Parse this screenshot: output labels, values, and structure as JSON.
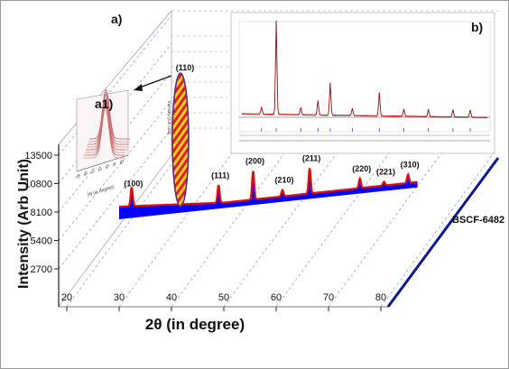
{
  "panel_labels": {
    "main": "a)",
    "inset_a1": "a1)",
    "inset_b": "b)"
  },
  "sample_label": "BSCF-6482",
  "chart_data": {
    "type": "line",
    "xlabel": "2θ (in degree)",
    "ylabel": "Intensity (Arb Unit)",
    "xlim": [
      20,
      80
    ],
    "ylim": [
      1500,
      15000
    ],
    "x_ticks": [
      "20",
      "30",
      "40",
      "50",
      "60",
      "70",
      "80"
    ],
    "y_ticks": [
      "2700",
      "5400",
      "8100",
      "10800",
      "13500"
    ],
    "y_tick_values": [
      2700,
      5400,
      8100,
      10800,
      13500
    ],
    "grid": true,
    "baseline": 8100,
    "series_color": "#e01010",
    "fill_color": "#0000ff",
    "peaks": [
      {
        "hkl": "(100)",
        "two_theta": 32.4,
        "height": 9900
      },
      {
        "hkl": "(110)",
        "two_theta": 42.0,
        "height": 8100
      },
      {
        "hkl": "(111)",
        "two_theta": 49.0,
        "height": 9800
      },
      {
        "hkl": "(200)",
        "two_theta": 55.6,
        "height": 10800
      },
      {
        "hkl": "(210)",
        "two_theta": 61.2,
        "height": 8700
      },
      {
        "hkl": "(211)",
        "two_theta": 66.4,
        "height": 10500
      },
      {
        "hkl": "(220)",
        "two_theta": 76.0,
        "height": 9000
      },
      {
        "hkl": "(221)",
        "two_theta": 80.6,
        "height": 8450
      },
      {
        "hkl": "(310)",
        "two_theta": 85.2,
        "height": 8900
      }
    ],
    "inset_a1": {
      "xlabel": "2θ (in degree)",
      "ylabel": "Intensity (Arb Unit)",
      "x_ticks": [
        "39",
        "40",
        "41",
        "42",
        "43",
        "44",
        "45"
      ]
    },
    "inset_b": {
      "series_color": "#e01010",
      "refinement_peaks": [
        0.08,
        0.14,
        0.24,
        0.31,
        0.36,
        0.45,
        0.56,
        0.66,
        0.76,
        0.86,
        0.93
      ]
    }
  }
}
